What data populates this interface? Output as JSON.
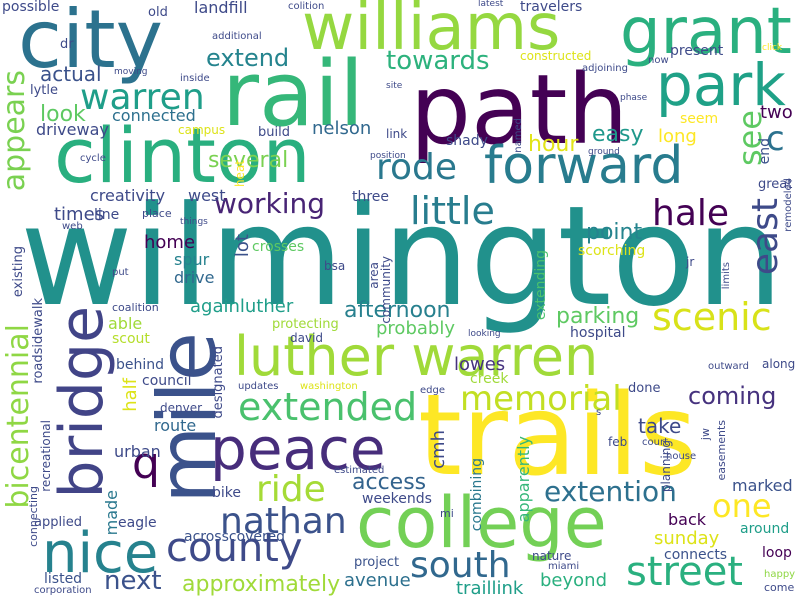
{
  "words": [
    {
      "text": "wilmington",
      "color": "#21918c"
    },
    {
      "text": "trails",
      "color": "#fde725"
    },
    {
      "text": "path",
      "color": "#440154"
    },
    {
      "text": "rail",
      "color": "#35b779"
    },
    {
      "text": "clinton",
      "color": "#29af7f"
    },
    {
      "text": "city",
      "color": "#2c728e"
    },
    {
      "text": "williams",
      "color": "#95d840"
    },
    {
      "text": "college",
      "color": "#73d056"
    },
    {
      "text": "mile",
      "color": "#3b528b"
    },
    {
      "text": "grant",
      "color": "#2ab07f"
    },
    {
      "text": "park",
      "color": "#1fa187"
    },
    {
      "text": "luther warren",
      "color": "#a0da39"
    },
    {
      "text": "forward",
      "color": "#287c8e"
    },
    {
      "text": "peace",
      "color": "#472d7b"
    },
    {
      "text": "nice",
      "color": "#26828e"
    },
    {
      "text": "bridge",
      "color": "#414487"
    },
    {
      "text": "county",
      "color": "#3e4a89"
    },
    {
      "text": "street",
      "color": "#2ab07f"
    },
    {
      "text": "south",
      "color": "#31688e"
    },
    {
      "text": "extended",
      "color": "#4ac16d"
    },
    {
      "text": "memorial",
      "color": "#c2df23"
    },
    {
      "text": "nathan",
      "color": "#3b528b"
    },
    {
      "text": "ride",
      "color": "#a5db36"
    },
    {
      "text": "warren",
      "color": "#1f9e89"
    },
    {
      "text": "rode",
      "color": "#2a788e"
    },
    {
      "text": "scenic",
      "color": "#d8e219"
    },
    {
      "text": "hale",
      "color": "#440154"
    },
    {
      "text": "little",
      "color": "#287d8e"
    },
    {
      "text": "east",
      "color": "#3e4a89"
    },
    {
      "text": "appears",
      "color": "#7ad151"
    },
    {
      "text": "bicentennial",
      "color": "#8fd744"
    },
    {
      "text": "working",
      "color": "#482475"
    },
    {
      "text": "extention",
      "color": "#2d708e"
    },
    {
      "text": "one",
      "color": "#fde725"
    },
    {
      "text": "towards",
      "color": "#2db27d"
    },
    {
      "text": "extend",
      "color": "#25848e"
    },
    {
      "text": "see",
      "color": "#5ec962"
    },
    {
      "text": "next",
      "color": "#3b528b"
    },
    {
      "text": "approximately",
      "color": "#a0da39"
    },
    {
      "text": "coming",
      "color": "#46327e"
    },
    {
      "text": "access",
      "color": "#33638d"
    },
    {
      "text": "afternoon",
      "color": "#27808e"
    },
    {
      "text": "q",
      "color": "#440154"
    },
    {
      "text": "c",
      "color": "#2c728e"
    },
    {
      "text": "several",
      "color": "#7ad151"
    },
    {
      "text": "easy",
      "color": "#1f988b"
    },
    {
      "text": "hour",
      "color": "#e2e418"
    },
    {
      "text": "look",
      "color": "#5ec962"
    },
    {
      "text": "actual",
      "color": "#3b528b"
    },
    {
      "text": "driveway",
      "color": "#3e4a89"
    },
    {
      "text": "connected",
      "color": "#2d708e"
    },
    {
      "text": "nelson",
      "color": "#31688e"
    },
    {
      "text": "parking",
      "color": "#5ec962"
    },
    {
      "text": "times",
      "color": "#3e4a89"
    },
    {
      "text": "home",
      "color": "#440154"
    },
    {
      "text": "point",
      "color": "#25848e"
    },
    {
      "text": "sunday",
      "color": "#dde318"
    },
    {
      "text": "take",
      "color": "#3e4a89"
    },
    {
      "text": "creek",
      "color": "#a0da39"
    },
    {
      "text": "lowes",
      "color": "#46337f"
    },
    {
      "text": "marked",
      "color": "#3b528b"
    },
    {
      "text": "avenue",
      "color": "#2d708e"
    },
    {
      "text": "beyond",
      "color": "#2ab07f"
    },
    {
      "text": "project",
      "color": "#3b528b"
    },
    {
      "text": "traillink",
      "color": "#1f9e89"
    },
    {
      "text": "connects",
      "color": "#3b528b"
    },
    {
      "text": "around",
      "color": "#1f9e89"
    },
    {
      "text": "back",
      "color": "#440154"
    },
    {
      "text": "long",
      "color": "#fde725"
    },
    {
      "text": "seem",
      "color": "#fde725"
    },
    {
      "text": "two",
      "color": "#440154"
    },
    {
      "text": "end",
      "color": "#3b528b"
    },
    {
      "text": "great",
      "color": "#3e4a89"
    },
    {
      "text": "drive",
      "color": "#31688e"
    },
    {
      "text": "spur",
      "color": "#26828e"
    },
    {
      "text": "west",
      "color": "#3e4a89"
    },
    {
      "text": "creativity",
      "color": "#3e4a89"
    },
    {
      "text": "lot",
      "color": "#3b528b"
    },
    {
      "text": "againluther",
      "color": "#1f9e89"
    },
    {
      "text": "probably",
      "color": "#5ec962"
    },
    {
      "text": "weekends",
      "color": "#3e4a89"
    },
    {
      "text": "combining",
      "color": "#2a788e"
    },
    {
      "text": "apparently",
      "color": "#35b779"
    },
    {
      "text": "extending",
      "color": "#4ac16d"
    },
    {
      "text": "urban",
      "color": "#3e4a89"
    },
    {
      "text": "route",
      "color": "#31688e"
    },
    {
      "text": "council",
      "color": "#3e4a89"
    },
    {
      "text": "denver",
      "color": "#3e4a89"
    },
    {
      "text": "behind",
      "color": "#3b528b"
    },
    {
      "text": "made",
      "color": "#2a788e"
    },
    {
      "text": "half",
      "color": "#dde318"
    },
    {
      "text": "able",
      "color": "#a0da39"
    },
    {
      "text": "scout",
      "color": "#b5de2b"
    },
    {
      "text": "cmh",
      "color": "#3e4a89"
    },
    {
      "text": "bike",
      "color": "#3e4a89"
    },
    {
      "text": "eagle",
      "color": "#3e4a89"
    },
    {
      "text": "acrosscovered",
      "color": "#3b528b"
    },
    {
      "text": "applied",
      "color": "#3e4a89"
    },
    {
      "text": "listed",
      "color": "#3b528b"
    },
    {
      "text": "loop",
      "color": "#440154"
    },
    {
      "text": "nature",
      "color": "#3e4a89"
    },
    {
      "text": "miami",
      "color": "#3e4a89"
    },
    {
      "text": "mi",
      "color": "#3e4a89"
    },
    {
      "text": "come",
      "color": "#3e4a89"
    },
    {
      "text": "happy",
      "color": "#8fd744"
    },
    {
      "text": "corporation",
      "color": "#3e4a89"
    },
    {
      "text": "along",
      "color": "#3e4a89"
    },
    {
      "text": "outward",
      "color": "#3e4a89"
    },
    {
      "text": "planning",
      "color": "#3e4a89"
    },
    {
      "text": "done",
      "color": "#3e4a89"
    },
    {
      "text": "edge",
      "color": "#3e4a89"
    },
    {
      "text": "feb",
      "color": "#3e4a89"
    },
    {
      "text": "court",
      "color": "#3e4a89"
    },
    {
      "text": "house",
      "color": "#3e4a89"
    },
    {
      "text": "jw",
      "color": "#3e4a89"
    },
    {
      "text": "easements",
      "color": "#3e4a89"
    },
    {
      "text": "estimated",
      "color": "#3e4a89"
    },
    {
      "text": "updates",
      "color": "#3e4a89"
    },
    {
      "text": "washington",
      "color": "#dde318"
    },
    {
      "text": "protecting",
      "color": "#a0da39"
    },
    {
      "text": "david",
      "color": "#3e4a89"
    },
    {
      "text": "coalition",
      "color": "#3e4a89"
    },
    {
      "text": "existing",
      "color": "#3e4a89"
    },
    {
      "text": "put",
      "color": "#3e4a89"
    },
    {
      "text": "web",
      "color": "#3e4a89"
    },
    {
      "text": "area",
      "color": "#3e4a89"
    },
    {
      "text": "community",
      "color": "#3e4a89"
    },
    {
      "text": "bsa",
      "color": "#3e4a89"
    },
    {
      "text": "jr",
      "color": "#3e4a89"
    },
    {
      "text": "limits",
      "color": "#3e4a89"
    },
    {
      "text": "remodeled",
      "color": "#3e4a89"
    },
    {
      "text": "scorching",
      "color": "#dde318"
    },
    {
      "text": "crosses",
      "color": "#5ec962"
    },
    {
      "text": "line",
      "color": "#3e4a89"
    },
    {
      "text": "place",
      "color": "#3e4a89"
    },
    {
      "text": "things",
      "color": "#3e4a89"
    },
    {
      "text": "three",
      "color": "#3e4a89"
    },
    {
      "text": "heat",
      "color": "#fde725"
    },
    {
      "text": "cycle",
      "color": "#3e4a89"
    },
    {
      "text": "build",
      "color": "#3e4a89"
    },
    {
      "text": "campus",
      "color": "#dde318"
    },
    {
      "text": "link",
      "color": "#3e4a89"
    },
    {
      "text": "shady",
      "color": "#3e4a89"
    },
    {
      "text": "named",
      "color": "#3e4a89"
    },
    {
      "text": "position",
      "color": "#3e4a89"
    },
    {
      "text": "ground",
      "color": "#3e4a89"
    },
    {
      "text": "phase",
      "color": "#3e4a89"
    },
    {
      "text": "present",
      "color": "#3e4a89"
    },
    {
      "text": "adjoining",
      "color": "#3e4a89"
    },
    {
      "text": "constructed",
      "color": "#dde318"
    },
    {
      "text": "now",
      "color": "#3e4a89"
    },
    {
      "text": "click",
      "color": "#fde725"
    },
    {
      "text": "travelers",
      "color": "#3e4a89"
    },
    {
      "text": "latest",
      "color": "#3e4a89"
    },
    {
      "text": "colition",
      "color": "#3e4a89"
    },
    {
      "text": "landfill",
      "color": "#3e4a89"
    },
    {
      "text": "additional",
      "color": "#3e4a89"
    },
    {
      "text": "old",
      "color": "#3e4a89"
    },
    {
      "text": "possible",
      "color": "#3e4a89"
    },
    {
      "text": "dr",
      "color": "#3e4a89"
    },
    {
      "text": "lytle",
      "color": "#3e4a89"
    },
    {
      "text": "moving",
      "color": "#3e4a89"
    },
    {
      "text": "inside",
      "color": "#3e4a89"
    },
    {
      "text": "site",
      "color": "#3e4a89"
    },
    {
      "text": "hospital",
      "color": "#3e4a89"
    },
    {
      "text": "recreational",
      "color": "#3e4a89"
    },
    {
      "text": "connecting",
      "color": "#3e4a89"
    },
    {
      "text": "roadsidewalk",
      "color": "#3e4a89"
    },
    {
      "text": "looking",
      "color": "#3e4a89"
    },
    {
      "text": "designated",
      "color": "#3e4a89"
    },
    {
      "text": "s",
      "color": "#3e4a89"
    }
  ]
}
